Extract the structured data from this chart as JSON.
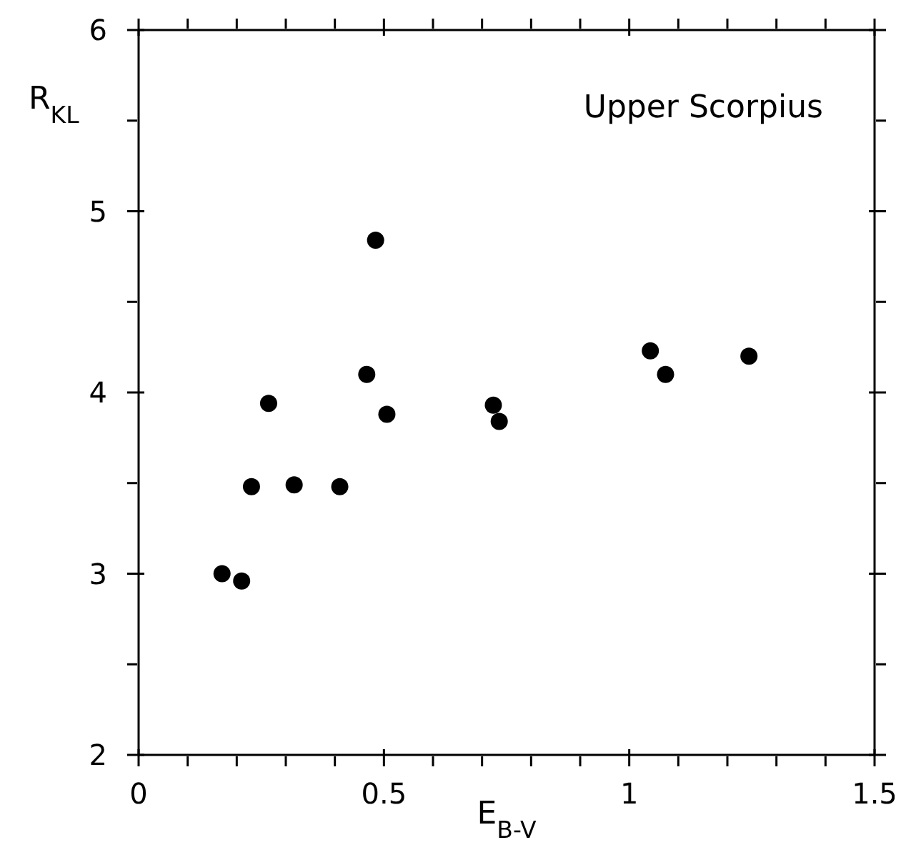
{
  "chart_data": {
    "type": "scatter",
    "xlabel": "E$_{B-V}$",
    "ylabel": "R$_{KL}$",
    "annotations": [
      "Upper Scorpius"
    ],
    "series": [
      {
        "color": "#000000",
        "x": [
          0.17,
          0.21,
          0.23,
          0.265,
          0.317,
          0.41,
          0.465,
          0.483,
          0.506,
          0.723,
          0.735,
          1.043,
          1.074,
          1.244
        ],
        "values": [
          3.0,
          2.96,
          3.48,
          3.94,
          3.49,
          3.48,
          4.1,
          4.84,
          3.88,
          3.93,
          3.84,
          4.23,
          4.1,
          4.2
        ]
      }
    ],
    "xlim": [
      0,
      1.5
    ],
    "ylim": [
      2,
      6
    ],
    "xticks": [
      0,
      {
        "value": 0.1,
        "label": null
      },
      {
        "value": 0.2,
        "label": null
      },
      {
        "value": 0.3,
        "label": null
      },
      {
        "value": 0.4,
        "label": null
      },
      0.5,
      {
        "value": 0.6,
        "label": null
      },
      {
        "value": 0.7,
        "label": null
      },
      {
        "value": 0.8,
        "label": null
      },
      {
        "value": 0.9,
        "label": null
      },
      1,
      {
        "value": 1.1,
        "label": null
      },
      {
        "value": 1.2,
        "label": null
      },
      {
        "value": 1.3,
        "label": null
      },
      {
        "value": 1.4,
        "label": null
      },
      1.5
    ],
    "yticks": [
      2,
      {
        "value": 2.5,
        "label": null
      },
      3,
      {
        "value": 3.5,
        "label": null
      },
      4,
      {
        "value": 4.5,
        "label": null
      },
      5,
      {
        "value": 5.5,
        "label": null
      },
      6
    ],
    "marker": "circle",
    "grid": false
  }
}
